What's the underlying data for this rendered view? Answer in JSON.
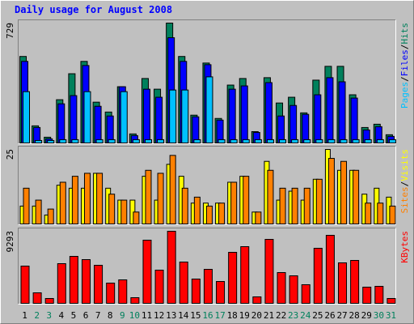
{
  "chart_data": [
    {
      "type": "bar",
      "title": "Daily usage for August 2008",
      "categories": [
        "1",
        "2",
        "3",
        "4",
        "5",
        "6",
        "7",
        "8",
        "9",
        "10",
        "11",
        "12",
        "13",
        "14",
        "15",
        "16",
        "17",
        "18",
        "19",
        "20",
        "21",
        "22",
        "23",
        "24",
        "25",
        "26",
        "27",
        "28",
        "29",
        "30",
        "31"
      ],
      "category_colors": [
        "#000000",
        "#00805c",
        "#00805c",
        "#000000",
        "#000000",
        "#000000",
        "#000000",
        "#000000",
        "#00805c",
        "#00805c",
        "#000000",
        "#000000",
        "#000000",
        "#000000",
        "#000000",
        "#00805c",
        "#00805c",
        "#000000",
        "#000000",
        "#000000",
        "#000000",
        "#000000",
        "#00805c",
        "#00805c",
        "#000000",
        "#000000",
        "#000000",
        "#000000",
        "#000000",
        "#00805c",
        "#00805c"
      ],
      "legend_separator": "/",
      "ylim": [
        0,
        729
      ],
      "yticks": [
        729
      ],
      "series": [
        {
          "name": "Hits",
          "color": "#00805c",
          "values": [
            526,
            104,
            35,
            263,
            421,
            496,
            248,
            188,
            342,
            55,
            392,
            327,
            729,
            526,
            169,
            486,
            149,
            352,
            392,
            69,
            397,
            243,
            278,
            183,
            382,
            466,
            466,
            293,
            94,
            114,
            50
          ]
        },
        {
          "name": "Files",
          "color": "#0000ff",
          "values": [
            496,
            94,
            25,
            238,
            288,
            471,
            223,
            164,
            342,
            45,
            327,
            278,
            640,
            496,
            159,
            476,
            139,
            327,
            347,
            64,
            367,
            164,
            228,
            174,
            293,
            397,
            372,
            273,
            79,
            99,
            40
          ]
        },
        {
          "name": "Pages",
          "color": "#00c0ff",
          "values": [
            312,
            15,
            15,
            20,
            20,
            312,
            20,
            20,
            312,
            20,
            20,
            20,
            322,
            322,
            20,
            402,
            20,
            20,
            20,
            20,
            20,
            20,
            20,
            20,
            20,
            20,
            20,
            20,
            20,
            20,
            20
          ]
        }
      ]
    },
    {
      "type": "bar",
      "legend_separator": "/",
      "ylim": [
        0,
        25
      ],
      "yticks": [
        25
      ],
      "series": [
        {
          "name": "Visits",
          "color": "#ffff00",
          "values": [
            6,
            6,
            3,
            13,
            12,
            12,
            17,
            12,
            8,
            8,
            16,
            8,
            20,
            16,
            7,
            7,
            7,
            14,
            16,
            4,
            21,
            8,
            11,
            8,
            15,
            25,
            18,
            18,
            10,
            12,
            9
          ]
        },
        {
          "name": "Sites",
          "color": "#ff8000",
          "values": [
            12,
            8,
            5,
            14,
            16,
            17,
            17,
            10,
            8,
            4,
            18,
            17,
            23,
            12,
            9,
            6,
            7,
            14,
            16,
            4,
            18,
            12,
            12,
            12,
            15,
            22,
            21,
            18,
            7,
            7,
            6
          ]
        }
      ]
    },
    {
      "type": "bar",
      "ylim": [
        0,
        9293
      ],
      "yticks": [
        9293
      ],
      "series": [
        {
          "name": "KBytes",
          "color": "#ff0000",
          "values": [
            4803,
            1357,
            626,
            5116,
            6056,
            5638,
            4907,
            2610,
            3028,
            731,
            8144,
            4281,
            9293,
            5325,
            3132,
            4385,
            2819,
            6578,
            7309,
            835,
            8249,
            3968,
            3550,
            2402,
            7100,
            8771,
            5221,
            5534,
            2088,
            2193,
            626
          ]
        }
      ]
    }
  ]
}
